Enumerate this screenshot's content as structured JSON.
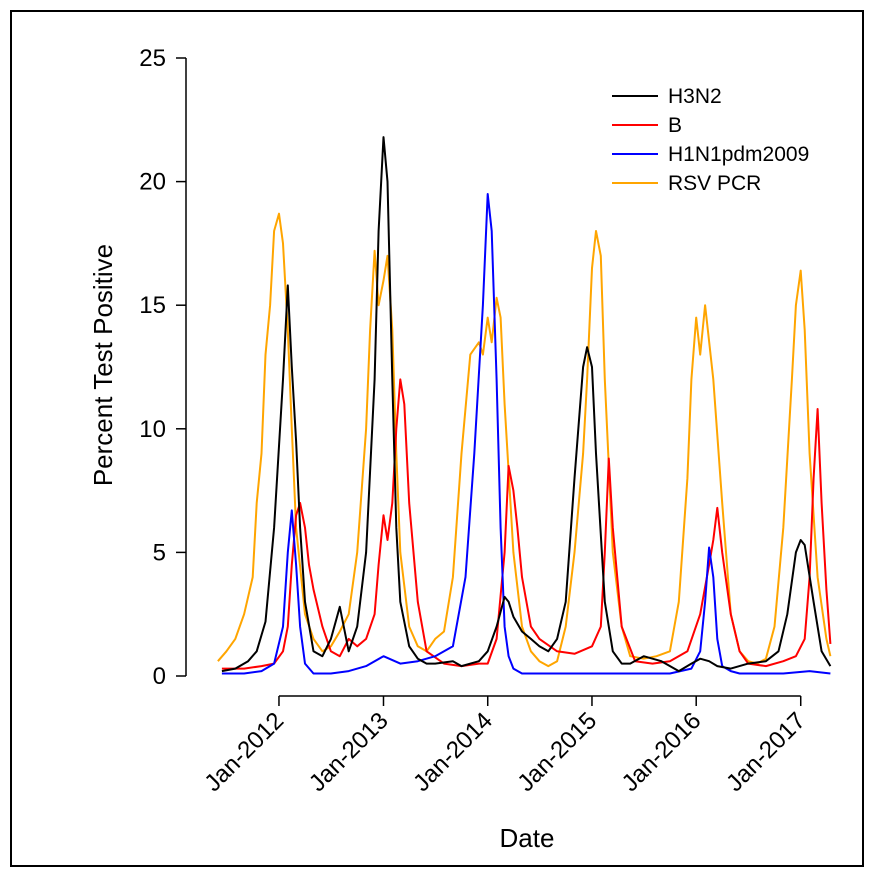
{
  "chart_data": {
    "type": "line",
    "title": "",
    "xlabel": "Date",
    "ylabel": "Percent Test Positive",
    "x_ticks": [
      "2012-01-01",
      "2013-01-01",
      "2014-01-01",
      "2015-01-01",
      "2016-01-01",
      "2017-01-01"
    ],
    "x_tick_labels": [
      "Jan-2012",
      "Jan-2013",
      "Jan-2014",
      "Jan-2015",
      "Jan-2016",
      "Jan-2017"
    ],
    "y_ticks": [
      0,
      5,
      10,
      15,
      20,
      25
    ],
    "ylim": [
      0,
      25
    ],
    "xlim": [
      "2011-05-01",
      "2017-05-01"
    ],
    "grid": false,
    "legend_position": "top-right",
    "series": [
      {
        "name": "H3N2",
        "color": "#000000",
        "x": [
          "2011-06-15",
          "2011-08-01",
          "2011-09-15",
          "2011-10-15",
          "2011-11-15",
          "2011-12-15",
          "2012-01-15",
          "2012-02-01",
          "2012-02-15",
          "2012-03-01",
          "2012-03-15",
          "2012-04-01",
          "2012-05-01",
          "2012-06-01",
          "2012-07-01",
          "2012-08-01",
          "2012-09-01",
          "2012-10-01",
          "2012-11-01",
          "2012-12-01",
          "2012-12-15",
          "2013-01-01",
          "2013-01-15",
          "2013-02-01",
          "2013-02-15",
          "2013-03-01",
          "2013-04-01",
          "2013-05-01",
          "2013-06-01",
          "2013-07-01",
          "2013-09-01",
          "2013-10-01",
          "2013-12-01",
          "2014-01-01",
          "2014-02-01",
          "2014-03-01",
          "2014-03-15",
          "2014-04-01",
          "2014-05-01",
          "2014-06-01",
          "2014-07-01",
          "2014-08-01",
          "2014-09-01",
          "2014-10-01",
          "2014-11-01",
          "2014-12-01",
          "2014-12-15",
          "2015-01-01",
          "2015-01-15",
          "2015-02-15",
          "2015-03-15",
          "2015-04-15",
          "2015-05-15",
          "2015-07-01",
          "2015-09-01",
          "2015-11-01",
          "2015-12-15",
          "2016-01-15",
          "2016-02-15",
          "2016-03-15",
          "2016-05-01",
          "2016-07-01",
          "2016-09-01",
          "2016-10-15",
          "2016-11-15",
          "2016-12-15",
          "2017-01-01",
          "2017-01-15",
          "2017-02-15",
          "2017-03-15",
          "2017-04-15"
        ],
        "values": [
          0.2,
          0.3,
          0.6,
          1.0,
          2.2,
          6.0,
          12.0,
          15.8,
          12.5,
          9.5,
          6.0,
          3.0,
          1.0,
          0.8,
          1.5,
          2.8,
          1.0,
          2.0,
          5.0,
          12.0,
          18.0,
          21.8,
          20.0,
          12.0,
          6.0,
          3.0,
          1.2,
          0.7,
          0.5,
          0.5,
          0.6,
          0.4,
          0.6,
          1.0,
          2.0,
          3.2,
          3.0,
          2.4,
          1.8,
          1.5,
          1.2,
          1.0,
          1.5,
          3.0,
          8.0,
          12.5,
          13.3,
          12.5,
          9.0,
          3.0,
          1.0,
          0.5,
          0.5,
          0.8,
          0.6,
          0.2,
          0.5,
          0.7,
          0.6,
          0.4,
          0.3,
          0.5,
          0.6,
          1.0,
          2.5,
          5.0,
          5.5,
          5.3,
          3.0,
          1.0,
          0.4
        ]
      },
      {
        "name": "B",
        "color": "#ff0000",
        "x": [
          "2011-06-15",
          "2011-09-01",
          "2011-11-01",
          "2011-12-15",
          "2012-01-15",
          "2012-02-01",
          "2012-02-15",
          "2012-03-01",
          "2012-03-15",
          "2012-04-01",
          "2012-04-15",
          "2012-05-01",
          "2012-06-01",
          "2012-07-01",
          "2012-08-01",
          "2012-09-01",
          "2012-10-01",
          "2012-11-01",
          "2012-12-01",
          "2012-12-15",
          "2013-01-01",
          "2013-01-15",
          "2013-02-01",
          "2013-02-15",
          "2013-03-01",
          "2013-03-15",
          "2013-04-01",
          "2013-05-01",
          "2013-06-01",
          "2013-08-01",
          "2013-10-01",
          "2013-12-01",
          "2014-01-01",
          "2014-02-01",
          "2014-03-01",
          "2014-03-15",
          "2014-04-01",
          "2014-04-15",
          "2014-05-01",
          "2014-06-01",
          "2014-07-01",
          "2014-09-01",
          "2014-11-01",
          "2015-01-01",
          "2015-02-01",
          "2015-02-15",
          "2015-03-01",
          "2015-03-15",
          "2015-04-15",
          "2015-06-01",
          "2015-08-01",
          "2015-10-01",
          "2015-12-01",
          "2016-01-15",
          "2016-02-15",
          "2016-03-01",
          "2016-03-15",
          "2016-04-01",
          "2016-05-01",
          "2016-06-01",
          "2016-07-01",
          "2016-09-01",
          "2016-11-01",
          "2016-12-15",
          "2017-01-15",
          "2017-02-01",
          "2017-02-15",
          "2017-03-01",
          "2017-03-15",
          "2017-04-01",
          "2017-04-15"
        ],
        "values": [
          0.3,
          0.3,
          0.4,
          0.5,
          1.0,
          2.0,
          4.5,
          6.5,
          7.0,
          6.0,
          4.5,
          3.5,
          2.0,
          1.0,
          0.8,
          1.5,
          1.2,
          1.5,
          2.5,
          4.5,
          6.5,
          5.5,
          7.0,
          10.0,
          12.0,
          11.0,
          7.0,
          3.0,
          1.0,
          0.5,
          0.4,
          0.5,
          0.5,
          1.5,
          5.0,
          8.5,
          7.5,
          6.0,
          4.0,
          2.0,
          1.5,
          1.0,
          0.9,
          1.2,
          2.0,
          5.0,
          8.8,
          6.0,
          2.0,
          0.6,
          0.5,
          0.6,
          1.0,
          2.5,
          4.5,
          5.5,
          6.8,
          5.0,
          2.5,
          1.0,
          0.5,
          0.4,
          0.6,
          0.8,
          1.5,
          4.0,
          8.0,
          10.8,
          7.0,
          3.5,
          1.3
        ]
      },
      {
        "name": "H1N1pdm2009",
        "color": "#0000ff",
        "x": [
          "2011-06-15",
          "2011-09-01",
          "2011-11-01",
          "2011-12-15",
          "2012-01-15",
          "2012-02-01",
          "2012-02-15",
          "2012-03-01",
          "2012-03-15",
          "2012-04-01",
          "2012-05-01",
          "2012-07-01",
          "2012-09-01",
          "2012-11-01",
          "2013-01-01",
          "2013-03-01",
          "2013-05-01",
          "2013-07-01",
          "2013-09-01",
          "2013-10-15",
          "2013-11-15",
          "2013-12-15",
          "2014-01-01",
          "2014-01-15",
          "2014-02-01",
          "2014-02-15",
          "2014-03-01",
          "2014-03-15",
          "2014-04-01",
          "2014-05-01",
          "2014-07-01",
          "2014-10-01",
          "2015-01-01",
          "2015-04-01",
          "2015-07-01",
          "2015-10-01",
          "2015-12-15",
          "2016-01-15",
          "2016-02-01",
          "2016-02-15",
          "2016-03-01",
          "2016-03-15",
          "2016-04-01",
          "2016-05-01",
          "2016-06-01",
          "2016-08-01",
          "2016-11-01",
          "2017-02-01",
          "2017-04-15"
        ],
        "values": [
          0.1,
          0.1,
          0.2,
          0.5,
          2.0,
          5.0,
          6.7,
          4.5,
          2.0,
          0.5,
          0.1,
          0.1,
          0.2,
          0.4,
          0.8,
          0.5,
          0.6,
          0.8,
          1.2,
          4.0,
          9.0,
          15.0,
          19.5,
          18.0,
          12.0,
          6.0,
          2.0,
          0.8,
          0.3,
          0.1,
          0.1,
          0.1,
          0.1,
          0.1,
          0.1,
          0.1,
          0.3,
          1.0,
          3.0,
          5.2,
          4.0,
          1.5,
          0.4,
          0.2,
          0.1,
          0.1,
          0.1,
          0.2,
          0.1
        ]
      },
      {
        "name": "RSV PCR",
        "color": "#ffa500",
        "x": [
          "2011-06-01",
          "2011-07-01",
          "2011-08-01",
          "2011-09-01",
          "2011-10-01",
          "2011-10-15",
          "2011-11-01",
          "2011-11-15",
          "2011-12-01",
          "2011-12-15",
          "2012-01-01",
          "2012-01-15",
          "2012-02-01",
          "2012-02-15",
          "2012-03-01",
          "2012-04-01",
          "2012-05-01",
          "2012-06-01",
          "2012-07-01",
          "2012-08-01",
          "2012-09-01",
          "2012-10-01",
          "2012-11-01",
          "2012-11-15",
          "2012-12-01",
          "2012-12-15",
          "2013-01-01",
          "2013-01-15",
          "2013-02-01",
          "2013-02-15",
          "2013-03-01",
          "2013-04-01",
          "2013-05-01",
          "2013-06-01",
          "2013-07-01",
          "2013-08-01",
          "2013-09-01",
          "2013-10-01",
          "2013-11-01",
          "2013-12-01",
          "2013-12-15",
          "2014-01-01",
          "2014-01-15",
          "2014-02-01",
          "2014-02-15",
          "2014-03-01",
          "2014-04-01",
          "2014-05-01",
          "2014-06-01",
          "2014-07-01",
          "2014-08-01",
          "2014-09-01",
          "2014-10-01",
          "2014-11-01",
          "2014-12-01",
          "2014-12-15",
          "2015-01-01",
          "2015-01-15",
          "2015-02-01",
          "2015-02-15",
          "2015-03-15",
          "2015-04-15",
          "2015-05-15",
          "2015-07-01",
          "2015-08-15",
          "2015-10-01",
          "2015-11-01",
          "2015-12-01",
          "2015-12-15",
          "2016-01-01",
          "2016-01-15",
          "2016-02-01",
          "2016-03-01",
          "2016-04-01",
          "2016-05-01",
          "2016-06-01",
          "2016-07-01",
          "2016-08-01",
          "2016-09-01",
          "2016-10-01",
          "2016-11-01",
          "2016-12-01",
          "2016-12-15",
          "2017-01-01",
          "2017-01-15",
          "2017-02-01",
          "2017-03-01",
          "2017-04-01",
          "2017-04-15"
        ],
        "values": [
          0.6,
          1.0,
          1.5,
          2.5,
          4.0,
          7.0,
          9.0,
          13.0,
          15.0,
          18.0,
          18.7,
          17.5,
          14.0,
          10.0,
          6.0,
          2.5,
          1.5,
          1.0,
          1.2,
          1.8,
          2.5,
          5.0,
          10.0,
          14.0,
          17.2,
          15.0,
          16.0,
          17.0,
          14.0,
          9.0,
          5.0,
          2.0,
          1.2,
          1.0,
          1.5,
          1.8,
          4.0,
          9.0,
          13.0,
          13.5,
          13.0,
          14.5,
          13.5,
          15.3,
          14.5,
          11.0,
          5.0,
          2.0,
          1.0,
          0.6,
          0.4,
          0.6,
          2.0,
          5.0,
          9.0,
          12.0,
          16.5,
          18.0,
          17.0,
          12.0,
          5.0,
          2.0,
          0.8,
          0.7,
          0.8,
          1.0,
          3.0,
          8.0,
          12.0,
          14.5,
          13.0,
          15.0,
          12.0,
          7.0,
          2.5,
          1.0,
          0.6,
          0.5,
          0.7,
          2.0,
          6.0,
          12.0,
          15.0,
          16.4,
          14.0,
          9.0,
          4.0,
          1.5,
          0.8
        ]
      }
    ]
  },
  "colors": {
    "background": "#ffffff",
    "axis": "#000000"
  }
}
